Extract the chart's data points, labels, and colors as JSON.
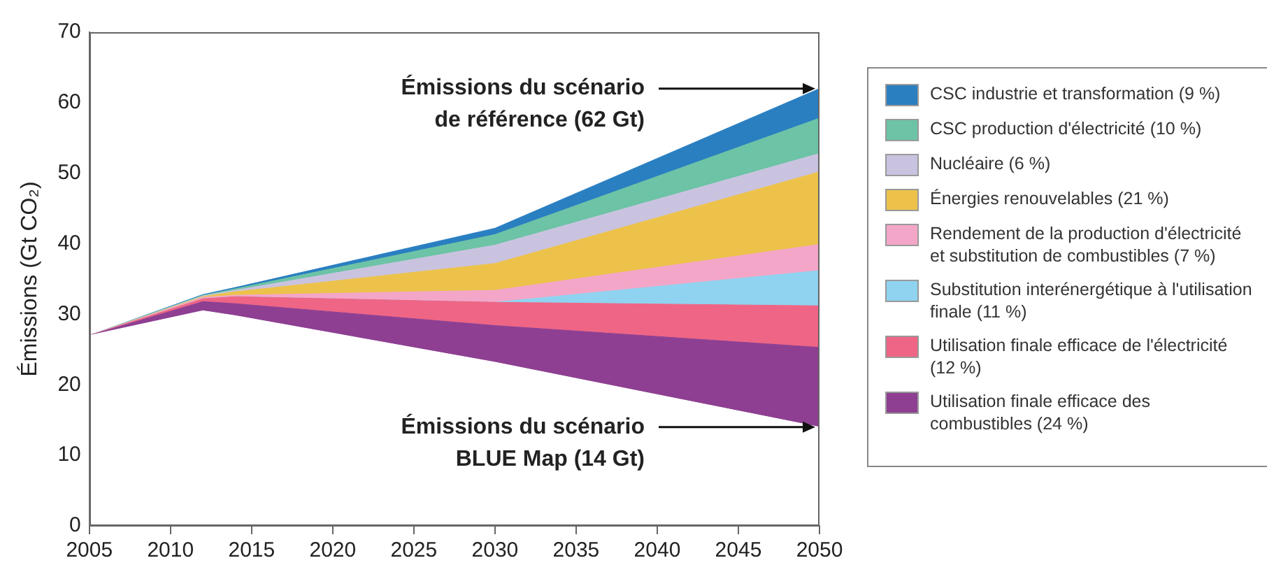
{
  "chart_data": {
    "type": "area",
    "stacked": true,
    "ylabel": "Émissions (Gt CO₂)",
    "x": [
      2005,
      2012,
      2014,
      2030,
      2050
    ],
    "xlim": [
      2005,
      2050
    ],
    "xticks": [
      2005,
      2010,
      2015,
      2020,
      2025,
      2030,
      2035,
      2040,
      2045,
      2050
    ],
    "ylim": [
      0,
      70
    ],
    "yticks": [
      0,
      10,
      20,
      30,
      40,
      50,
      60,
      70
    ],
    "grid": false,
    "legend": "right",
    "series": [
      {
        "color": "#ffffff",
        "values": [
          27,
          30.5,
          29.8,
          23.2,
          14
        ]
      },
      {
        "name": "Utilisation finale efficace des combustibles (24 %)",
        "color": "#8e3f92",
        "values": [
          0,
          1.3,
          1.7,
          5.2,
          11.3
        ]
      },
      {
        "name": "Utilisation finale efficace de l'électricité (12 %)",
        "color": "#ef6585",
        "values": [
          0,
          0.4,
          1.0,
          3.3,
          5.9
        ]
      },
      {
        "name": "Substitution interénergétique à l'utilisation finale (11 %)",
        "color": "#8fd3f0",
        "values": [
          0,
          0,
          0,
          0,
          5.0
        ]
      },
      {
        "name": "Rendement de la production d'électricité et substitution de combustibles (7 %)",
        "color": "#f4a6c8",
        "values": [
          0,
          0.2,
          0.2,
          1.7,
          3.7
        ]
      },
      {
        "name": "Énergies renouvelables (21 %)",
        "color": "#ecc24a",
        "values": [
          0,
          0.1,
          0.5,
          3.8,
          10.3
        ]
      },
      {
        "name": "Nucléaire (6 %)",
        "color": "#c9c3e0",
        "values": [
          0,
          0.1,
          0.2,
          2.6,
          2.6
        ]
      },
      {
        "name": "CSC production d'électricité (10 %)",
        "color": "#6cc3a5",
        "values": [
          0,
          0.1,
          0.2,
          1.5,
          5.0
        ]
      },
      {
        "name": "CSC industrie et transformation (9 %)",
        "color": "#2a7fc1",
        "values": [
          0,
          0.1,
          0.2,
          0.9,
          4.2
        ]
      }
    ],
    "annotations": [
      {
        "text": "Émissions du scénario\nde référence (62 Gt)",
        "x": 2050,
        "y": 62
      },
      {
        "text": "Émissions du scénario\nBLUE Map (14 Gt)",
        "x": 2050,
        "y": 14
      }
    ]
  }
}
